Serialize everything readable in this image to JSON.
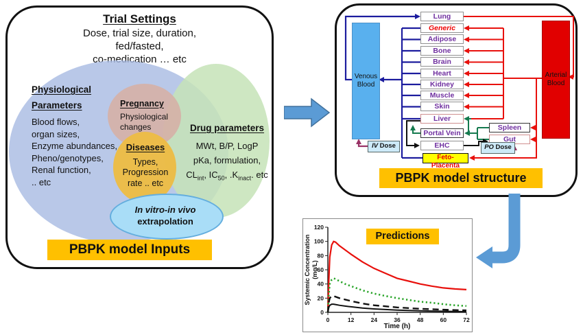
{
  "left_panel": {
    "title": "Trial Settings",
    "subtitle_lines": [
      "Dose, trial size, duration,",
      "fed/fasted,",
      "co-medication … etc"
    ],
    "physiological": {
      "heading1": "Physiological",
      "heading2": "Parameters",
      "items": [
        "Blood flows,",
        "organ sizes,",
        "Enzyme abundances,",
        "Pheno/genotypes,",
        "Renal function,",
        ".. etc"
      ]
    },
    "pregnancy": {
      "heading": "Pregnancy",
      "body_lines": [
        "Physiological",
        "changes"
      ]
    },
    "diseases": {
      "heading": "Diseases",
      "body_lines": [
        "Types,",
        "Progression",
        "rate .. etc"
      ]
    },
    "drug": {
      "heading": "Drug parameters",
      "line1": "MWt, B/P, LogP",
      "line2": "pKa, formulation,",
      "line3": {
        "p1": "CL",
        "s1": "int",
        "p2": ", IC",
        "s2": "50",
        "p3": ", .K",
        "s3": "inact",
        "p4": ". etc"
      }
    },
    "ivive": {
      "line1": "In vitro-in vivo",
      "line2": "extrapolation"
    },
    "banner": "PBPK model Inputs"
  },
  "right_panel": {
    "banner": "PBPK model structure",
    "venous": {
      "line1": "Venous",
      "line2": "Blood"
    },
    "arterial": {
      "line1": "Arterial",
      "line2": "Blood"
    },
    "organs": [
      {
        "label": "Lung"
      },
      {
        "label": "Generic"
      },
      {
        "label": "Adipose"
      },
      {
        "label": "Bone"
      },
      {
        "label": "Brain"
      },
      {
        "label": "Heart"
      },
      {
        "label": "Kidney"
      },
      {
        "label": "Muscle"
      },
      {
        "label": "Skin"
      },
      {
        "label": "Liver"
      },
      {
        "label": "Portal Vein"
      },
      {
        "label": "EHC"
      },
      {
        "label": "Spleen"
      },
      {
        "label": "Gut"
      },
      {
        "label": "Feto-Placenta"
      }
    ],
    "iv_dose": {
      "prefix": "IV",
      "word": " Dose"
    },
    "po_dose": {
      "prefix": "PO",
      "word": " Dose"
    }
  },
  "chart_data": {
    "type": "line",
    "title": "Predictions",
    "xlabel": "Time (h)",
    "ylabel_line1": "Systemic Concentration",
    "ylabel_line2": "(mg/L)",
    "xlim": [
      0,
      72
    ],
    "ylim": [
      0,
      120
    ],
    "xticks": [
      0,
      12,
      24,
      36,
      48,
      60,
      72
    ],
    "yticks": [
      0,
      20,
      40,
      60,
      80,
      100,
      120
    ],
    "grid": false,
    "x": [
      0,
      0.5,
      1,
      2,
      3,
      4,
      6,
      9,
      12,
      18,
      24,
      30,
      36,
      42,
      48,
      54,
      60,
      66,
      72
    ],
    "series": [
      {
        "name": "high-dose prediction",
        "color": "#e8100c",
        "dash": "solid",
        "width": 2.2,
        "values": [
          0,
          45,
          78,
          95,
          100,
          99,
          94,
          88,
          82,
          71,
          62,
          55,
          48,
          44,
          40,
          37,
          34.5,
          33,
          32
        ]
      },
      {
        "name": "mid-dose prediction",
        "color": "#28a428",
        "dash": "dotted",
        "width": 2.6,
        "values": [
          0,
          25,
          40,
          46,
          48,
          47,
          44,
          40,
          37,
          31,
          26.5,
          23,
          20,
          17.5,
          15,
          13.5,
          11.5,
          10,
          9
        ]
      },
      {
        "name": "low-dose prediction",
        "color": "#111111",
        "dash": "dashed",
        "width": 2.4,
        "values": [
          0,
          14,
          20,
          23,
          23,
          22,
          20,
          18,
          16,
          12.5,
          10,
          8.5,
          7,
          6,
          5,
          4.5,
          3.8,
          3.2,
          2.8
        ]
      },
      {
        "name": "lowest-dose prediction",
        "color": "#111111",
        "dash": "solid",
        "width": 2,
        "values": [
          0,
          7,
          10,
          11.5,
          11.5,
          11,
          10,
          8.8,
          7.8,
          6,
          4.8,
          4,
          3.2,
          2.7,
          2.2,
          1.8,
          1.5,
          1.2,
          1
        ]
      }
    ]
  },
  "colors": {
    "banner_orange": "#FFC000",
    "arrow_blue": "#5B9BD5",
    "venous_blue": "#59b0ee",
    "arterial_red": "#e10000",
    "venous_line": "#1c1c9e",
    "arterial_line": "#e8100c",
    "portal_green": "#147a4e",
    "bile_black": "#111111",
    "dose_purple": "#993366",
    "organ_text_purple": "#7030A0",
    "feto_yellow": "#ffff00"
  }
}
